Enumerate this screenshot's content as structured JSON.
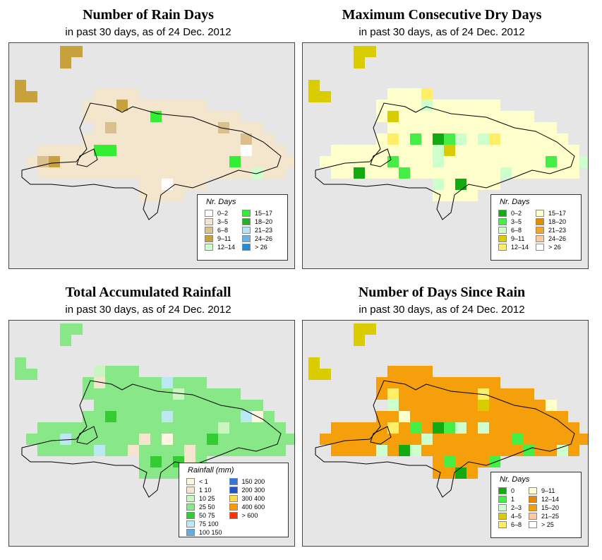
{
  "panels": [
    {
      "title": "Number of Rain Days",
      "subtitle": "in past 30 days, as of  24 Dec. 2012",
      "base_fill": "#f3e6cc",
      "legend": {
        "title": "Nr. Days",
        "rows_per_column": 5,
        "items": [
          {
            "label": "0–2",
            "color": "#ffffff"
          },
          {
            "label": "3–5",
            "color": "#f3e6cc"
          },
          {
            "label": "6–8",
            "color": "#dbc08e"
          },
          {
            "label": "9–11",
            "color": "#c8a03c"
          },
          {
            "label": "12–14",
            "color": "#ccffcc"
          },
          {
            "label": "15–17",
            "color": "#33ee33"
          },
          {
            "label": "18–20",
            "color": "#22b322"
          },
          {
            "label": "21–23",
            "color": "#b3e6f5"
          },
          {
            "label": "24–26",
            "color": "#66b3e6"
          },
          {
            "label": "> 26",
            "color": "#1a8cd9"
          }
        ]
      }
    },
    {
      "title": "Maximum Consecutive Dry Days",
      "subtitle": "in past 30 days, as of  24 Dec. 2012",
      "base_fill": "#ffffcc",
      "legend": {
        "title": "Nr. Days",
        "rows_per_column": 5,
        "items": [
          {
            "label": "0–2",
            "color": "#11aa11"
          },
          {
            "label": "3–5",
            "color": "#44ee44"
          },
          {
            "label": "6–8",
            "color": "#ccffcc"
          },
          {
            "label": "9–11",
            "color": "#d9cc00"
          },
          {
            "label": "12–14",
            "color": "#ffee66"
          },
          {
            "label": "15–17",
            "color": "#ffffcc"
          },
          {
            "label": "18–20",
            "color": "#e68a00"
          },
          {
            "label": "21–23",
            "color": "#f5a623"
          },
          {
            "label": "24–26",
            "color": "#ffc8a0"
          },
          {
            "label": "> 26",
            "color": "#ffffff"
          }
        ]
      }
    },
    {
      "title": "Total Accumulated Rainfall",
      "subtitle": "in past 30 days, as of  24 Dec. 2012",
      "base_fill": "#88e888",
      "legend": {
        "title": "Rainfall (mm)",
        "rows_per_column": 7,
        "items": [
          {
            "label": "< 1",
            "color": "#fff5e0"
          },
          {
            "label": "1     10",
            "color": "#f3e6cc"
          },
          {
            "label": "10     25",
            "color": "#c8f5c0"
          },
          {
            "label": "25     50",
            "color": "#88e888"
          },
          {
            "label": "50     75",
            "color": "#33cc33"
          },
          {
            "label": "75   100",
            "color": "#bbe8f5"
          },
          {
            "label": "100   150",
            "color": "#66aaee"
          },
          {
            "label": "150   200",
            "color": "#3377dd"
          },
          {
            "label": "200   300",
            "color": "#2255cc"
          },
          {
            "label": "300   400",
            "color": "#ffdd44"
          },
          {
            "label": "400   600",
            "color": "#ff9900"
          },
          {
            "label": "> 600",
            "color": "#ff3300"
          }
        ]
      }
    },
    {
      "title": "Number of Days Since Rain",
      "subtitle": "in past 30 days, as of  24 Dec. 2012",
      "base_fill": "#f5a00a",
      "legend": {
        "title": "Nr. Days",
        "rows_per_column": 5,
        "items": [
          {
            "label": "0",
            "color": "#11aa11"
          },
          {
            "label": "1",
            "color": "#44ee44"
          },
          {
            "label": "2–3",
            "color": "#ccffcc"
          },
          {
            "label": "4–5",
            "color": "#d9cc00"
          },
          {
            "label": "6–8",
            "color": "#ffee66"
          },
          {
            "label": "9–11",
            "color": "#ffffcc"
          },
          {
            "label": "12–14",
            "color": "#e68a00"
          },
          {
            "label": "15–20",
            "color": "#f5a00a"
          },
          {
            "label": "21–25",
            "color": "#ffc8a0"
          },
          {
            "label": "> 25",
            "color": "#ffffff"
          }
        ]
      }
    }
  ]
}
